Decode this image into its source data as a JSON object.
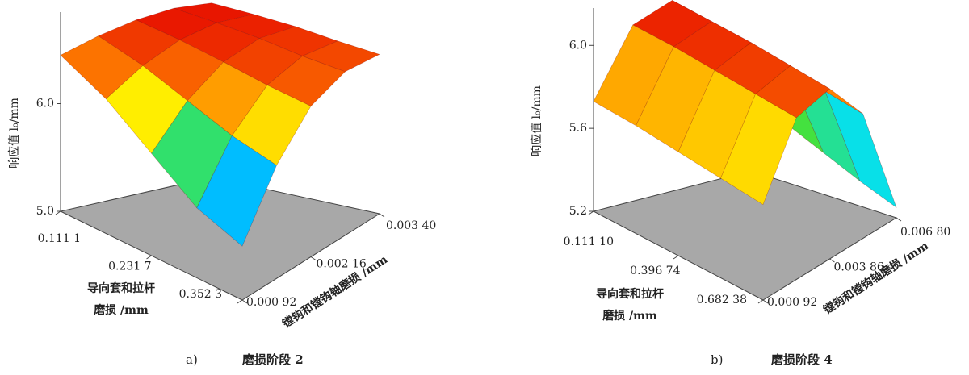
{
  "chart_data": [
    {
      "type": "surface",
      "caption_label": "a)",
      "caption": "磨损阶段 2",
      "zlabel": "响应值 l₀/mm",
      "xlabel": [
        "导向套和拉杆",
        "磨损 /mm"
      ],
      "ylabel": "镗钩和镗钩轴磨损 /mm",
      "xlim": [
        0.1111,
        0.3523
      ],
      "ylim": [
        0.00092,
        0.0034
      ],
      "zlim": [
        5.0,
        6.85
      ],
      "xticks": [
        {
          "value": 0.1111,
          "label": "0.111 1"
        },
        {
          "value": 0.2317,
          "label": "0.231 7"
        },
        {
          "value": 0.3523,
          "label": "0.352 3"
        }
      ],
      "yticks": [
        {
          "value": 0.00092,
          "label": "0.000 92"
        },
        {
          "value": 0.00216,
          "label": "0.002 16"
        },
        {
          "value": 0.0034,
          "label": "0.003 40"
        }
      ],
      "zticks": [
        {
          "value": 5.0,
          "label": "5.0"
        },
        {
          "value": 6.0,
          "label": "6.0"
        }
      ],
      "x": [
        0.1111,
        0.1714,
        0.2317,
        0.292,
        0.3523
      ],
      "y": [
        0.00092,
        0.00154,
        0.00216,
        0.00278,
        0.0034
      ],
      "z": [
        [
          6.45,
          6.55,
          6.62,
          6.65,
          6.62
        ],
        [
          6.25,
          6.45,
          6.58,
          6.63,
          6.6
        ],
        [
          5.95,
          6.3,
          6.52,
          6.6,
          6.57
        ],
        [
          5.65,
          6.15,
          6.45,
          6.55,
          6.52
        ],
        [
          5.5,
          6.05,
          6.4,
          6.52,
          6.48
        ]
      ]
    },
    {
      "type": "surface",
      "caption_label": "b)",
      "caption": "磨损阶段 4",
      "zlabel": "响应值 l₀/mm",
      "xlabel": [
        "导向套和拉杆",
        "磨损 /mm"
      ],
      "ylabel": "镗钩和镗钩轴磨损 /mm",
      "xlim": [
        0.1111,
        0.68238
      ],
      "ylim": [
        0.00092,
        0.0068
      ],
      "zlim": [
        5.2,
        6.18
      ],
      "xticks": [
        {
          "value": 0.1111,
          "label": "0.111 10"
        },
        {
          "value": 0.39674,
          "label": "0.396 74"
        },
        {
          "value": 0.68238,
          "label": "0.682 38"
        }
      ],
      "yticks": [
        {
          "value": 0.00092,
          "label": "0.000 92"
        },
        {
          "value": 0.00386,
          "label": "0.003 86"
        },
        {
          "value": 0.0068,
          "label": "0.006 80"
        }
      ],
      "zticks": [
        {
          "value": 5.2,
          "label": "5.2"
        },
        {
          "value": 5.6,
          "label": "5.6"
        },
        {
          "value": 6.0,
          "label": "6.0"
        }
      ],
      "x": [
        0.1111,
        0.25402,
        0.39674,
        0.53956,
        0.68238
      ],
      "y": [
        0.00092,
        0.00239,
        0.00386,
        0.00533,
        0.0068
      ],
      "z": [
        [
          5.73,
          6.05,
          6.12,
          5.95,
          5.55
        ],
        [
          5.72,
          6.04,
          6.1,
          5.92,
          5.48
        ],
        [
          5.7,
          6.02,
          6.08,
          5.88,
          5.4
        ],
        [
          5.68,
          6.0,
          6.05,
          5.84,
          5.32
        ],
        [
          5.66,
          5.98,
          6.02,
          5.8,
          5.25
        ]
      ]
    }
  ]
}
